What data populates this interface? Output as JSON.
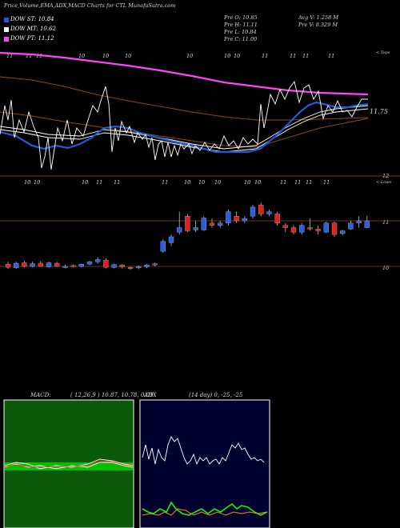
{
  "header": {
    "title": "Price,Volume,EMA,ADX,MACD Charts for CTL  MunafaSutra.com"
  },
  "legend": [
    {
      "label": "DOW ST: 10.84",
      "color": "#1e5bd8"
    },
    {
      "label": "DOW MT: 10.62",
      "color": "#ffffff"
    },
    {
      "label": "DOW PT: 11.12",
      "color": "#ff44ff"
    }
  ],
  "stats": {
    "prev_open": "Pre   O: 10.85",
    "prev_high": "Pre   H: 11.11",
    "prev_low": "Pre   L: 10.84",
    "prev_close": "Pre   C: 11.00",
    "avg_volume": "Avg V: 1.258  M",
    "prev_volume": "Pre   V: 8.329  M"
  },
  "top_panel": {
    "corner_label": "<-Tops",
    "price_label": "11.75",
    "tick_label": "12",
    "date_ticks": [
      "11",
      "11",
      "11",
      "10",
      "10",
      "10",
      "10",
      "10",
      "10",
      "11",
      "11",
      "11",
      "11"
    ]
  },
  "bottom_panel": {
    "corner_label": "<-Lows",
    "date_ticks": [
      "10",
      "10",
      "10",
      "11",
      "11",
      "11",
      "10",
      "10",
      "10",
      "10",
      "10",
      "11",
      "11",
      "11",
      "11"
    ],
    "price_ticks": [
      "11",
      "10"
    ]
  },
  "macd": {
    "label": "MACD:",
    "params": "( 12,26,9 ) 10.87,  10.78,  0.09"
  },
  "adx": {
    "label": "ADX",
    "params": "(14  day) 0,  -25,  -25"
  },
  "colors": {
    "up": "#2a5fe0",
    "down": "#e02020",
    "ema_short": "#1e5bd8",
    "ema_mid": "#ffffff",
    "ema_long": "#ff44ff",
    "ema_brown": "#8b4a1a",
    "macd_bg": "#0a5a0a",
    "adx_bg": "#000030"
  },
  "chart_data": {
    "type": "candlestick",
    "candles": [
      {
        "o": 10.05,
        "h": 10.1,
        "l": 9.95,
        "c": 9.98
      },
      {
        "o": 9.97,
        "h": 10.1,
        "l": 9.95,
        "c": 10.07
      },
      {
        "o": 10.08,
        "h": 10.12,
        "l": 9.98,
        "c": 10.0
      },
      {
        "o": 10.0,
        "h": 10.1,
        "l": 9.98,
        "c": 10.06
      },
      {
        "o": 10.07,
        "h": 10.12,
        "l": 9.99,
        "c": 10.0
      },
      {
        "o": 9.99,
        "h": 10.1,
        "l": 9.97,
        "c": 10.08
      },
      {
        "o": 10.07,
        "h": 10.1,
        "l": 9.99,
        "c": 10.0
      },
      {
        "o": 10.0,
        "h": 10.04,
        "l": 9.96,
        "c": 10.0
      },
      {
        "o": 10.02,
        "h": 10.04,
        "l": 9.98,
        "c": 10.0
      },
      {
        "o": 10.0,
        "h": 10.06,
        "l": 9.98,
        "c": 10.05
      },
      {
        "o": 10.05,
        "h": 10.12,
        "l": 10.03,
        "c": 10.1
      },
      {
        "o": 10.1,
        "h": 10.2,
        "l": 10.06,
        "c": 10.15
      },
      {
        "o": 10.14,
        "h": 10.18,
        "l": 9.96,
        "c": 9.98
      },
      {
        "o": 9.98,
        "h": 10.06,
        "l": 9.96,
        "c": 10.04
      },
      {
        "o": 10.03,
        "h": 10.05,
        "l": 9.95,
        "c": 9.99
      },
      {
        "o": 9.98,
        "h": 10.0,
        "l": 9.92,
        "c": 9.97
      },
      {
        "o": 9.97,
        "h": 10.02,
        "l": 9.94,
        "c": 10.0
      },
      {
        "o": 9.99,
        "h": 10.05,
        "l": 9.96,
        "c": 10.03
      },
      {
        "o": 10.03,
        "h": 10.08,
        "l": 10.0,
        "c": 10.06
      },
      {
        "o": 10.33,
        "h": 10.6,
        "l": 10.3,
        "c": 10.55
      },
      {
        "o": 10.52,
        "h": 10.7,
        "l": 10.45,
        "c": 10.65
      },
      {
        "o": 10.75,
        "h": 11.2,
        "l": 10.7,
        "c": 10.85
      },
      {
        "o": 11.1,
        "h": 11.15,
        "l": 10.75,
        "c": 10.78
      },
      {
        "o": 10.8,
        "h": 11.0,
        "l": 10.75,
        "c": 10.85
      },
      {
        "o": 10.8,
        "h": 11.1,
        "l": 10.78,
        "c": 11.06
      },
      {
        "o": 10.95,
        "h": 11.05,
        "l": 10.85,
        "c": 10.9
      },
      {
        "o": 10.9,
        "h": 11.0,
        "l": 10.85,
        "c": 10.95
      },
      {
        "o": 10.95,
        "h": 11.25,
        "l": 10.9,
        "c": 11.2
      },
      {
        "o": 11.1,
        "h": 11.2,
        "l": 10.95,
        "c": 11.0
      },
      {
        "o": 11.0,
        "h": 11.1,
        "l": 10.95,
        "c": 11.05
      },
      {
        "o": 11.1,
        "h": 11.35,
        "l": 11.05,
        "c": 11.3
      },
      {
        "o": 11.35,
        "h": 11.4,
        "l": 11.1,
        "c": 11.15
      },
      {
        "o": 11.15,
        "h": 11.25,
        "l": 11.1,
        "c": 11.2
      },
      {
        "o": 11.15,
        "h": 11.2,
        "l": 10.9,
        "c": 10.95
      },
      {
        "o": 10.9,
        "h": 10.95,
        "l": 10.75,
        "c": 10.85
      },
      {
        "o": 10.85,
        "h": 10.9,
        "l": 10.7,
        "c": 10.75
      },
      {
        "o": 10.75,
        "h": 10.95,
        "l": 10.7,
        "c": 10.9
      },
      {
        "o": 10.85,
        "h": 11.05,
        "l": 10.78,
        "c": 10.82
      },
      {
        "o": 10.82,
        "h": 10.9,
        "l": 10.7,
        "c": 10.78
      },
      {
        "o": 10.75,
        "h": 10.98,
        "l": 10.74,
        "c": 10.95
      },
      {
        "o": 10.95,
        "h": 10.98,
        "l": 10.65,
        "c": 10.7
      },
      {
        "o": 10.72,
        "h": 10.8,
        "l": 10.68,
        "c": 10.78
      },
      {
        "o": 10.82,
        "h": 11.0,
        "l": 10.8,
        "c": 10.95
      },
      {
        "o": 10.95,
        "h": 11.1,
        "l": 10.85,
        "c": 11.0
      },
      {
        "o": 10.85,
        "h": 11.11,
        "l": 10.84,
        "c": 11.0
      }
    ]
  }
}
